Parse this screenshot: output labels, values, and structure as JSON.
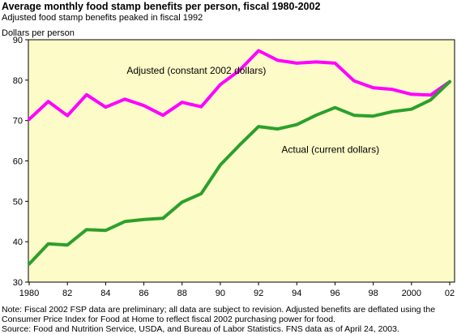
{
  "header": {
    "title": "Average monthly food stamp benefits per person, fiscal 1980-2002",
    "subtitle": "Adjusted food stamp benefits peaked in fiscal 1992"
  },
  "footer": {
    "note_line1": "Note: Fiscal 2002 FSP data are preliminary; all data are subject to revision. Adjusted benefits are deflated using the",
    "note_line2": "Consumer Price Index for Food at Home to reflect fiscal 2002 purchasing power for food.",
    "source": "Source: Food and Nutrition Service, USDA, and Bureau of Labor Statistics. FNS data as of April 24, 2003."
  },
  "chart_data": {
    "type": "line",
    "ylabel": "Dollars per person",
    "xlabel": "",
    "x": [
      1980,
      1981,
      1982,
      1983,
      1984,
      1985,
      1986,
      1987,
      1988,
      1989,
      1990,
      1991,
      1992,
      1993,
      1994,
      1995,
      1996,
      1997,
      1998,
      1999,
      2000,
      2001,
      2002
    ],
    "xlim": [
      1980,
      2002
    ],
    "ylim": [
      30,
      90
    ],
    "x_ticks": [
      1980,
      1982,
      1984,
      1986,
      1988,
      1990,
      1992,
      1994,
      1996,
      1998,
      2000,
      2002
    ],
    "x_tick_labels": [
      "1980",
      "82",
      "84",
      "86",
      "88",
      "90",
      "92",
      "94",
      "96",
      "98",
      "2000",
      "02"
    ],
    "y_ticks": [
      30,
      40,
      50,
      60,
      70,
      80,
      90
    ],
    "y_tick_labels": [
      "30",
      "40",
      "50",
      "60",
      "70",
      "80",
      "90"
    ],
    "grid": false,
    "plot_background": "#fdfcc8",
    "series": [
      {
        "name": "Adjusted (constant 2002 dollars)",
        "color": "#ff00ff",
        "values": [
          70.3,
          74.7,
          71.2,
          76.4,
          73.3,
          75.3,
          73.7,
          71.3,
          74.5,
          73.4,
          78.9,
          82.4,
          87.3,
          84.9,
          84.2,
          84.5,
          84.2,
          79.8,
          78.1,
          77.7,
          76.5,
          76.3,
          79.6
        ]
      },
      {
        "name": "Actual (current dollars)",
        "color": "#2ca02c",
        "values": [
          34.5,
          39.5,
          39.2,
          43.0,
          42.8,
          45.0,
          45.5,
          45.8,
          49.8,
          51.9,
          59.0,
          63.9,
          68.5,
          67.9,
          69.0,
          71.3,
          73.2,
          71.3,
          71.1,
          72.2,
          72.8,
          75.1,
          79.6
        ]
      }
    ],
    "annotations": [
      {
        "series": 0,
        "text": "Adjusted (constant 2002 dollars)",
        "x": 1985.1,
        "y": 81.6
      },
      {
        "series": 1,
        "text": "Actual (current dollars)",
        "x": 1993.2,
        "y": 62.0
      }
    ]
  }
}
